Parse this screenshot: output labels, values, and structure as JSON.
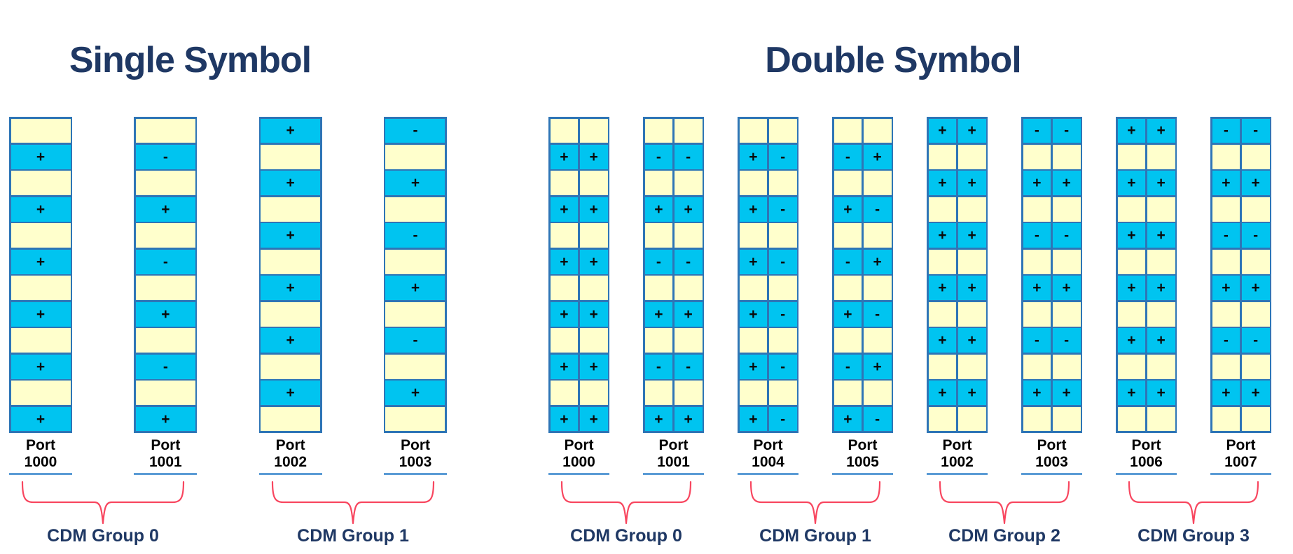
{
  "diagram": {
    "sections": [
      {
        "key": "single",
        "title": "Single Symbol",
        "symbols_per_cell": 1,
        "columns": [
          {
            "label": "Port",
            "number": "1000",
            "rows": [
              [
                ""
              ],
              [
                "+"
              ],
              [
                ""
              ],
              [
                "+"
              ],
              [
                ""
              ],
              [
                "+"
              ],
              [
                ""
              ],
              [
                "+"
              ],
              [
                ""
              ],
              [
                "+"
              ],
              [
                ""
              ],
              [
                "+"
              ]
            ]
          },
          {
            "label": "Port",
            "number": "1001",
            "rows": [
              [
                ""
              ],
              [
                "-"
              ],
              [
                ""
              ],
              [
                "+"
              ],
              [
                ""
              ],
              [
                "-"
              ],
              [
                ""
              ],
              [
                "+"
              ],
              [
                ""
              ],
              [
                "-"
              ],
              [
                ""
              ],
              [
                "+"
              ]
            ]
          },
          {
            "label": "Port",
            "number": "1002",
            "rows": [
              [
                "+"
              ],
              [
                ""
              ],
              [
                "+"
              ],
              [
                ""
              ],
              [
                "+"
              ],
              [
                ""
              ],
              [
                "+"
              ],
              [
                ""
              ],
              [
                "+"
              ],
              [
                ""
              ],
              [
                "+"
              ],
              [
                ""
              ]
            ]
          },
          {
            "label": "Port",
            "number": "1003",
            "rows": [
              [
                "-"
              ],
              [
                ""
              ],
              [
                "+"
              ],
              [
                ""
              ],
              [
                "-"
              ],
              [
                ""
              ],
              [
                "+"
              ],
              [
                ""
              ],
              [
                "-"
              ],
              [
                ""
              ],
              [
                "+"
              ],
              [
                ""
              ]
            ]
          }
        ],
        "groups": [
          {
            "label": "CDM Group 0",
            "from": 0,
            "to": 1
          },
          {
            "label": "CDM Group 1",
            "from": 2,
            "to": 3
          }
        ]
      },
      {
        "key": "double",
        "title": "Double Symbol",
        "symbols_per_cell": 2,
        "columns": [
          {
            "label": "Port",
            "number": "1000",
            "rows": [
              [
                "",
                ""
              ],
              [
                "+",
                "+"
              ],
              [
                "",
                ""
              ],
              [
                "+",
                "+"
              ],
              [
                "",
                ""
              ],
              [
                "+",
                "+"
              ],
              [
                "",
                ""
              ],
              [
                "+",
                "+"
              ],
              [
                "",
                ""
              ],
              [
                "+",
                "+"
              ],
              [
                "",
                ""
              ],
              [
                "+",
                "+"
              ]
            ]
          },
          {
            "label": "Port",
            "number": "1001",
            "rows": [
              [
                "",
                ""
              ],
              [
                "-",
                "-"
              ],
              [
                "",
                ""
              ],
              [
                "+",
                "+"
              ],
              [
                "",
                ""
              ],
              [
                "-",
                "-"
              ],
              [
                "",
                ""
              ],
              [
                "+",
                "+"
              ],
              [
                "",
                ""
              ],
              [
                "-",
                "-"
              ],
              [
                "",
                ""
              ],
              [
                "+",
                "+"
              ]
            ]
          },
          {
            "label": "Port",
            "number": "1004",
            "rows": [
              [
                "",
                ""
              ],
              [
                "+",
                "-"
              ],
              [
                "",
                ""
              ],
              [
                "+",
                "-"
              ],
              [
                "",
                ""
              ],
              [
                "+",
                "-"
              ],
              [
                "",
                ""
              ],
              [
                "+",
                "-"
              ],
              [
                "",
                ""
              ],
              [
                "+",
                "-"
              ],
              [
                "",
                ""
              ],
              [
                "+",
                "-"
              ]
            ]
          },
          {
            "label": "Port",
            "number": "1005",
            "rows": [
              [
                "",
                ""
              ],
              [
                "-",
                "+"
              ],
              [
                "",
                ""
              ],
              [
                "+",
                "-"
              ],
              [
                "",
                ""
              ],
              [
                "-",
                "+"
              ],
              [
                "",
                ""
              ],
              [
                "+",
                "-"
              ],
              [
                "",
                ""
              ],
              [
                "-",
                "+"
              ],
              [
                "",
                ""
              ],
              [
                "+",
                "-"
              ]
            ]
          },
          {
            "label": "Port",
            "number": "1002",
            "rows": [
              [
                "+",
                "+"
              ],
              [
                "",
                ""
              ],
              [
                "+",
                "+"
              ],
              [
                "",
                ""
              ],
              [
                "+",
                "+"
              ],
              [
                "",
                ""
              ],
              [
                "+",
                "+"
              ],
              [
                "",
                ""
              ],
              [
                "+",
                "+"
              ],
              [
                "",
                ""
              ],
              [
                "+",
                "+"
              ],
              [
                "",
                ""
              ]
            ]
          },
          {
            "label": "Port",
            "number": "1003",
            "rows": [
              [
                "-",
                "-"
              ],
              [
                "",
                ""
              ],
              [
                "+",
                "+"
              ],
              [
                "",
                ""
              ],
              [
                "-",
                "-"
              ],
              [
                "",
                ""
              ],
              [
                "+",
                "+"
              ],
              [
                "",
                ""
              ],
              [
                "-",
                "-"
              ],
              [
                "",
                ""
              ],
              [
                "+",
                "+"
              ],
              [
                "",
                ""
              ]
            ]
          },
          {
            "label": "Port",
            "number": "1006",
            "rows": [
              [
                "+",
                "+"
              ],
              [
                "",
                ""
              ],
              [
                "+",
                "+"
              ],
              [
                "",
                ""
              ],
              [
                "+",
                "+"
              ],
              [
                "",
                ""
              ],
              [
                "+",
                "+"
              ],
              [
                "",
                ""
              ],
              [
                "+",
                "+"
              ],
              [
                "",
                ""
              ],
              [
                "+",
                "+"
              ],
              [
                "",
                ""
              ]
            ]
          },
          {
            "label": "Port",
            "number": "1007",
            "rows": [
              [
                "-",
                "-"
              ],
              [
                "",
                ""
              ],
              [
                "+",
                "+"
              ],
              [
                "",
                ""
              ],
              [
                "-",
                "-"
              ],
              [
                "",
                ""
              ],
              [
                "+",
                "+"
              ],
              [
                "",
                ""
              ],
              [
                "-",
                "-"
              ],
              [
                "",
                ""
              ],
              [
                "+",
                "+"
              ],
              [
                "",
                ""
              ]
            ]
          }
        ],
        "groups": [
          {
            "label": "CDM Group 0",
            "from": 0,
            "to": 1
          },
          {
            "label": "CDM Group 1",
            "from": 2,
            "to": 3
          },
          {
            "label": "CDM Group 2",
            "from": 4,
            "to": 5
          },
          {
            "label": "CDM Group 3",
            "from": 6,
            "to": 7
          }
        ]
      }
    ],
    "colors": {
      "occupied_cell": "#00c4f0",
      "empty_cell": "#ffffcc",
      "cell_border": "#2e75b6",
      "title_text": "#1f3864",
      "port_text": "#000000",
      "port_underline": "#5b9bd5",
      "brace": "#f8465f",
      "group_label_text": "#1f3864",
      "sign_text": "#0a0a0a"
    }
  }
}
